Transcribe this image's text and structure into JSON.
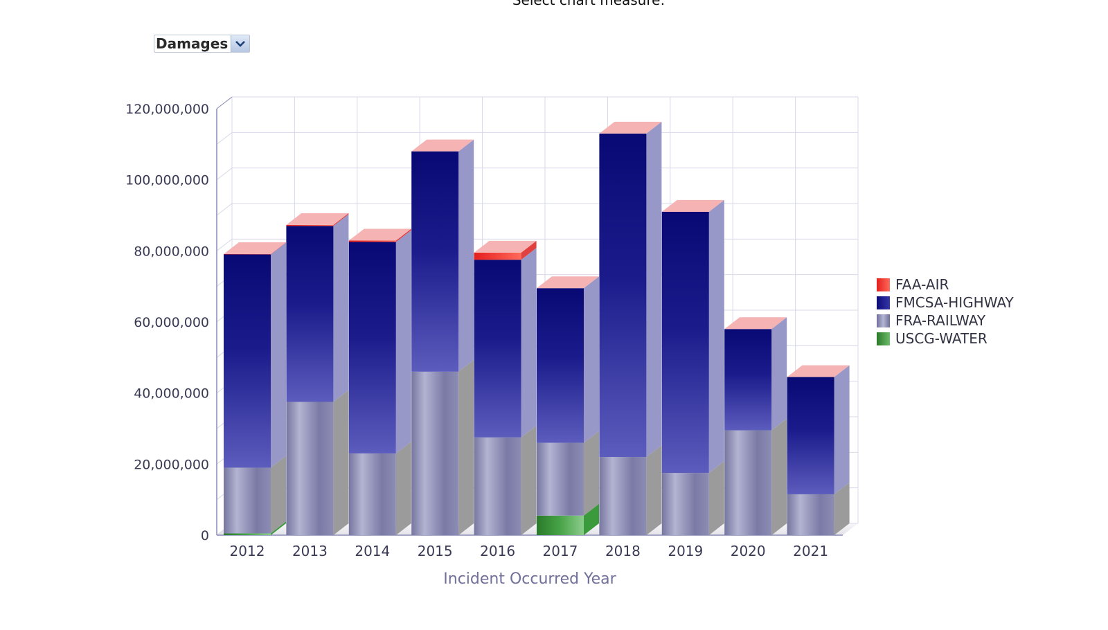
{
  "header": {
    "title": "Select chart measure:"
  },
  "measure_select": {
    "value": "Damages",
    "icon": "chevron-down-icon"
  },
  "colors": {
    "air": "#e8302b",
    "highway": "#0c0c78",
    "railway": "#7e7eaa",
    "water": "#2f8a2f"
  },
  "chart_data": {
    "type": "bar",
    "stacked": true,
    "three_d": true,
    "xlabel": "Incident Occurred Year",
    "ylabel": "",
    "ylim": [
      0,
      120000000
    ],
    "yticks": [
      "0",
      "20,000,000",
      "40,000,000",
      "60,000,000",
      "80,000,000",
      "100,000,000",
      "120,000,000"
    ],
    "grid": true,
    "legend_position": "right",
    "categories": [
      "2012",
      "2013",
      "2014",
      "2015",
      "2016",
      "2017",
      "2018",
      "2019",
      "2020",
      "2021"
    ],
    "series": [
      {
        "name": "USCG-WATER",
        "values": [
          500000,
          0,
          0,
          0,
          0,
          5500000,
          0,
          0,
          0,
          0
        ]
      },
      {
        "name": "FRA-RAILWAY",
        "values": [
          18500000,
          37500000,
          23000000,
          46000000,
          27500000,
          20500000,
          22000000,
          17500000,
          29500000,
          11500000
        ]
      },
      {
        "name": "FMCSA-HIGHWAY",
        "values": [
          60000000,
          49500000,
          59500000,
          62000000,
          50000000,
          43500000,
          91000000,
          73500000,
          28500000,
          33000000
        ]
      },
      {
        "name": "FAA-AIR",
        "values": [
          100000,
          300000,
          400000,
          0,
          2000000,
          0,
          0,
          0,
          0,
          0
        ]
      }
    ]
  },
  "legend": [
    {
      "label": "FAA-AIR",
      "key": "air"
    },
    {
      "label": "FMCSA-HIGHWAY",
      "key": "highway"
    },
    {
      "label": "FRA-RAILWAY",
      "key": "railway"
    },
    {
      "label": "USCG-WATER",
      "key": "water"
    }
  ]
}
